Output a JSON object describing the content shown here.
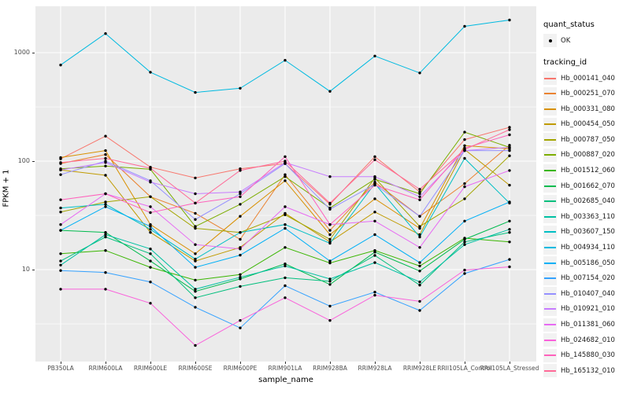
{
  "figure": {
    "background": "#FFFFFF",
    "panel_background": "#EBEBEB",
    "grid_color": "#FFFFFF",
    "point_color": "#000000",
    "tick_text_color": "#4D4D4D"
  },
  "axes": {
    "y": {
      "title": "FPKM + 1",
      "scale": "log10",
      "ticks": [
        {
          "label": "1000",
          "value": 1000
        },
        {
          "label": "100",
          "value": 100
        },
        {
          "label": "10",
          "value": 10
        }
      ],
      "minor_values": [
        316,
        31.6,
        3.16
      ]
    },
    "x": {
      "title": "sample_name",
      "categories": [
        "PB350LA",
        "RRIM600LA",
        "RRIM600LE",
        "RRIM600SE",
        "RRIM600PE",
        "RRIM901LA",
        "RRIM928BA",
        "RRIM928LA",
        "RRIM928LE",
        "RRII105LA_Control",
        "RRII105LA_Stressed"
      ]
    }
  },
  "legend": {
    "quant": {
      "title": "quant_status",
      "items": [
        {
          "label": "OK",
          "marker": "point"
        }
      ]
    },
    "tracking": {
      "title": "tracking_id"
    }
  },
  "chart_data": {
    "type": "line",
    "title": "",
    "xlabel": "sample_name",
    "ylabel": "FPKM + 1",
    "yscale": "log10",
    "ylim": [
      1.8,
      2300
    ],
    "grid": true,
    "legend_position": "right",
    "point_marker": "black dot on every value",
    "x_categories": [
      "PB350LA",
      "RRIM600LA",
      "RRIM600LE",
      "RRIM600SE",
      "RRIM600PE",
      "RRIM901LA",
      "RRIM928BA",
      "RRIM928LA",
      "RRIM928LE",
      "RRII105LA_Control",
      "RRII105LA_Stressed"
    ],
    "series": [
      {
        "name": "Hb_000141_040",
        "color": "#F8766D",
        "values": [
          105,
          170,
          88,
          70,
          85,
          95,
          40,
          110,
          52,
          158,
          205
        ]
      },
      {
        "name": "Hb_000251_070",
        "color": "#EA8331",
        "values": [
          95,
          115,
          47,
          33,
          19,
          75,
          23,
          64,
          31,
          62,
          140
        ]
      },
      {
        "name": "Hb_000331_080",
        "color": "#D89000",
        "values": [
          108,
          125,
          26,
          14,
          31,
          66,
          21,
          45,
          24,
          139,
          130
        ]
      },
      {
        "name": "Hb_000454_050",
        "color": "#C09B00",
        "values": [
          83,
          74,
          22,
          12,
          16,
          33,
          18,
          34,
          21,
          128,
          60
        ]
      },
      {
        "name": "Hb_000787_050",
        "color": "#A3A500",
        "values": [
          34,
          42,
          47,
          24,
          22,
          32,
          19,
          70,
          25,
          45,
          112
        ]
      },
      {
        "name": "Hb_000887_020",
        "color": "#7CAE00",
        "values": [
          85,
          90,
          84,
          25,
          40,
          72,
          37,
          68,
          50,
          185,
          134
        ]
      },
      {
        "name": "Hb_001512_060",
        "color": "#39B600",
        "values": [
          14,
          15,
          10.5,
          8,
          9,
          16,
          11.5,
          15,
          10.8,
          19.5,
          18
        ]
      },
      {
        "name": "Hb_001662_070",
        "color": "#00BB4E",
        "values": [
          23,
          22,
          12,
          6.3,
          8.2,
          11.3,
          7.3,
          14.5,
          9.7,
          19,
          28
        ]
      },
      {
        "name": "Hb_002685_040",
        "color": "#00BF7D",
        "values": [
          12,
          20,
          14,
          5.5,
          7,
          8.4,
          7.8,
          13.5,
          7.2,
          18,
          22
        ]
      },
      {
        "name": "Hb_003363_110",
        "color": "#00C1A3",
        "values": [
          11,
          21,
          15.5,
          6.6,
          8.5,
          10.8,
          8.2,
          11.6,
          7.7,
          17,
          23.5
        ]
      },
      {
        "name": "Hb_003607_150",
        "color": "#00BFC4",
        "values": [
          37,
          40,
          23.5,
          12.5,
          22,
          26,
          17.5,
          62,
          20,
          106,
          41
        ]
      },
      {
        "name": "Hb_004934_110",
        "color": "#00BAE0",
        "values": [
          770,
          1500,
          660,
          430,
          470,
          850,
          440,
          930,
          650,
          1750,
          2000
        ]
      },
      {
        "name": "Hb_005186_050",
        "color": "#00B0F6",
        "values": [
          23,
          38,
          25,
          10.5,
          13.6,
          24,
          12,
          21,
          11.6,
          28,
          42
        ]
      },
      {
        "name": "Hb_007154_020",
        "color": "#35A2FF",
        "values": [
          9.8,
          9.4,
          7.7,
          4.5,
          2.9,
          7.1,
          4.6,
          6.2,
          4.2,
          9.2,
          12.4
        ]
      },
      {
        "name": "Hb_010407_040",
        "color": "#9590FF",
        "values": [
          75,
          100,
          66,
          29,
          50,
          95,
          36,
          61,
          31,
          125,
          125
        ]
      },
      {
        "name": "Hb_010921_010",
        "color": "#C77CFF",
        "values": [
          83,
          97,
          64,
          50,
          52,
          97,
          72,
          72,
          47,
          125,
          134
        ]
      },
      {
        "name": "Hb_011381_060",
        "color": "#E76BF3",
        "values": [
          26,
          50,
          38,
          17,
          15.5,
          38,
          26,
          28,
          16,
          58,
          82
        ]
      },
      {
        "name": "Hb_024682_010",
        "color": "#FA62DB",
        "values": [
          6.6,
          6.6,
          4.9,
          2,
          3.4,
          5.5,
          3.4,
          5.8,
          5.1,
          9.9,
          10.6
        ]
      },
      {
        "name": "Hb_145880_030",
        "color": "#FF62BC",
        "values": [
          44,
          50,
          33.5,
          41,
          47,
          110,
          26,
          60,
          44,
          132,
          175
        ]
      },
      {
        "name": "Hb_165132_010",
        "color": "#FF6A98",
        "values": [
          97,
          106,
          86,
          41,
          82,
          100,
          41,
          103,
          55,
          128,
          195
        ]
      }
    ]
  }
}
